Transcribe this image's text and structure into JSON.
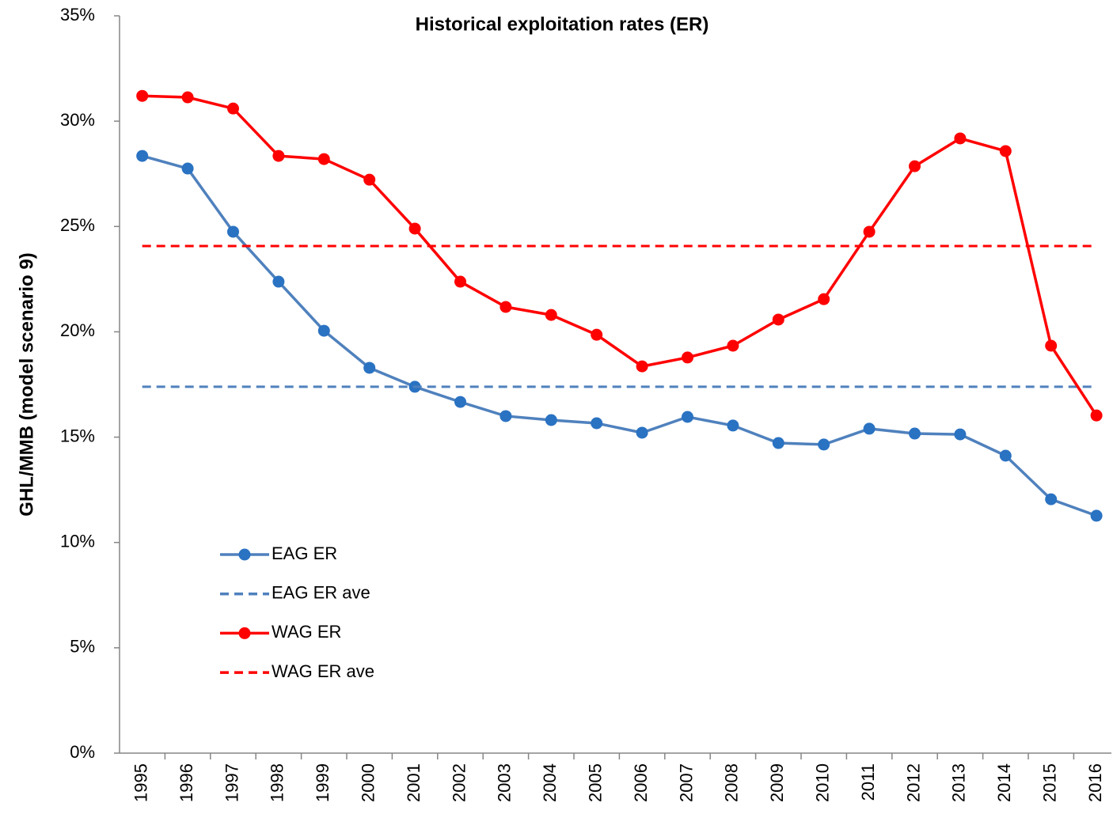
{
  "chart_data": {
    "type": "line",
    "title": "Historical exploitation rates (ER)",
    "y_label": "GHL/MMB (model scenario 9)",
    "categories": [
      "1995",
      "1996",
      "1997",
      "1998",
      "1999",
      "2000",
      "2001",
      "2002",
      "2003",
      "2004",
      "2005",
      "2006",
      "2007",
      "2008",
      "2009",
      "2010",
      "2011",
      "2012",
      "2013",
      "2014",
      "2015",
      "2016"
    ],
    "series": [
      {
        "name": "EAG ER",
        "color": "#4f81bd",
        "marker_color": "#2a72c2",
        "markers": true,
        "dashed": false,
        "values": [
          28.35,
          27.75,
          24.75,
          22.38,
          20.05,
          18.29,
          17.39,
          16.67,
          16.0,
          15.81,
          15.66,
          15.21,
          15.96,
          15.55,
          14.72,
          14.65,
          15.4,
          15.17,
          15.13,
          14.12,
          12.05,
          11.27
        ]
      },
      {
        "name": "EAG ER ave",
        "color": "#4f81bd",
        "markers": false,
        "dashed": true,
        "values": [
          17.39,
          17.39,
          17.39,
          17.39,
          17.39,
          17.39,
          17.39,
          17.39,
          17.39,
          17.39,
          17.39,
          17.39,
          17.39,
          17.39,
          17.39,
          17.39,
          17.39,
          17.39,
          17.39,
          17.39,
          17.39,
          17.39
        ]
      },
      {
        "name": "WAG ER",
        "color": "#ff0000",
        "marker_color": "#ff0000",
        "markers": true,
        "dashed": false,
        "values": [
          31.2,
          31.13,
          30.6,
          28.35,
          28.2,
          27.22,
          24.9,
          22.38,
          21.18,
          20.8,
          19.86,
          18.36,
          18.78,
          19.34,
          20.58,
          21.55,
          24.75,
          27.86,
          29.18,
          28.58,
          19.34,
          16.03
        ]
      },
      {
        "name": "WAG ER ave",
        "color": "#ff0000",
        "markers": false,
        "dashed": true,
        "values": [
          24.07,
          24.07,
          24.07,
          24.07,
          24.07,
          24.07,
          24.07,
          24.07,
          24.07,
          24.07,
          24.07,
          24.07,
          24.07,
          24.07,
          24.07,
          24.07,
          24.07,
          24.07,
          24.07,
          24.07,
          24.07,
          24.07
        ]
      }
    ],
    "ylim": [
      0,
      35
    ],
    "yticks": [
      {
        "value": 0,
        "label": "0%"
      },
      {
        "value": 5,
        "label": "5%"
      },
      {
        "value": 10,
        "label": "10%"
      },
      {
        "value": 15,
        "label": "15%"
      },
      {
        "value": 20,
        "label": "20%"
      },
      {
        "value": 25,
        "label": "25%"
      },
      {
        "value": 30,
        "label": "30%"
      },
      {
        "value": 35,
        "label": "35%"
      }
    ],
    "grid": false
  }
}
